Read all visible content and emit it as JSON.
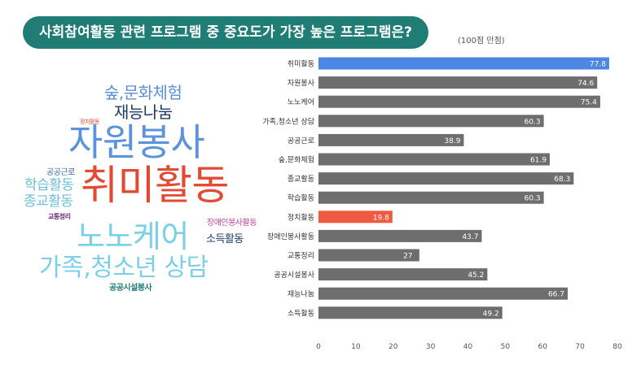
{
  "header": {
    "title": "사회참여활동 관련 프로그램 중 중요도가 가장 높은 프로그램은?",
    "scale_note": "(100점 만점)"
  },
  "word_cloud": [
    {
      "text": "숲,문화체험",
      "color": "#5b8fd6"
    },
    {
      "text": "재능나눔",
      "color": "#1d3a62"
    },
    {
      "text": "정치활동",
      "color": "#e24a33"
    },
    {
      "text": "자원봉사",
      "color": "#5b93dc"
    },
    {
      "text": "공공근로",
      "color": "#3c6aa8"
    },
    {
      "text": "학습활동",
      "color": "#6cc0d8"
    },
    {
      "text": "취미활동",
      "color": "#e24a33"
    },
    {
      "text": "종교활동",
      "color": "#6cc0d8"
    },
    {
      "text": "교통정리",
      "color": "#6a2a7a"
    },
    {
      "text": "장애인봉사활동",
      "color": "#c0449a"
    },
    {
      "text": "노노케어",
      "color": "#7cd0e6"
    },
    {
      "text": "소득활동",
      "color": "#1d3a62"
    },
    {
      "text": "가족,청소년 상담",
      "color": "#7cd0e6"
    },
    {
      "text": "공공시설봉사",
      "color": "#1f7d75"
    }
  ],
  "chart_data": {
    "type": "bar",
    "orientation": "horizontal",
    "categories": [
      "취미활동",
      "자원봉사",
      "노노케어",
      "가족,청소년 상담",
      "공공근로",
      "숲,문화체험",
      "종교활동",
      "학습활동",
      "정치활동",
      "장애인봉사활동",
      "교통정리",
      "공공시설봉사",
      "재능나눔",
      "소득활동"
    ],
    "values": [
      77.8,
      74.6,
      75.4,
      60.3,
      38.9,
      61.9,
      68.3,
      60.3,
      19.8,
      43.7,
      27,
      45.2,
      66.7,
      49.2
    ],
    "highlight": {
      "취미활동": "#4e86e4",
      "정치활동": "#ef5a41"
    },
    "bar_color": "#6e6e6e",
    "xlim": [
      0,
      80
    ],
    "xticks": [
      0,
      10,
      20,
      30,
      40,
      50,
      60,
      70,
      80
    ],
    "grid": false
  }
}
